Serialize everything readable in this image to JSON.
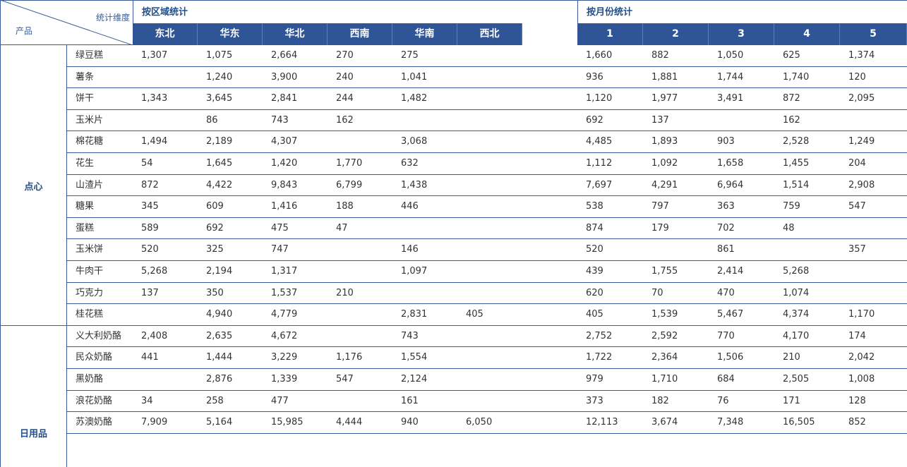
{
  "header": {
    "corner_stat": "统计维度",
    "corner_product": "产品",
    "region_group": "按区域统计",
    "month_group": "按月份统计",
    "regions": [
      "东北",
      "华东",
      "华北",
      "西南",
      "华南",
      "西北"
    ],
    "months": [
      "1",
      "2",
      "3",
      "4",
      "5"
    ]
  },
  "categories": [
    {
      "name": "点心"
    },
    {
      "name": "日用品"
    }
  ],
  "rows": [
    {
      "product": "绿豆糕",
      "regions": [
        "1,307",
        "1,075",
        "2,664",
        "270",
        "275",
        ""
      ],
      "months": [
        "1,660",
        "882",
        "1,050",
        "625",
        "1,374"
      ]
    },
    {
      "product": "薯条",
      "regions": [
        "",
        "1,240",
        "3,900",
        "240",
        "1,041",
        ""
      ],
      "months": [
        "936",
        "1,881",
        "1,744",
        "1,740",
        "120"
      ]
    },
    {
      "product": "饼干",
      "regions": [
        "1,343",
        "3,645",
        "2,841",
        "244",
        "1,482",
        ""
      ],
      "months": [
        "1,120",
        "1,977",
        "3,491",
        "872",
        "2,095"
      ]
    },
    {
      "product": "玉米片",
      "regions": [
        "",
        "86",
        "743",
        "162",
        "",
        ""
      ],
      "months": [
        "692",
        "137",
        "",
        "162",
        ""
      ]
    },
    {
      "product": "棉花糖",
      "regions": [
        "1,494",
        "2,189",
        "4,307",
        "",
        "3,068",
        ""
      ],
      "months": [
        "4,485",
        "1,893",
        "903",
        "2,528",
        "1,249"
      ]
    },
    {
      "product": "花生",
      "regions": [
        "54",
        "1,645",
        "1,420",
        "1,770",
        "632",
        ""
      ],
      "months": [
        "1,112",
        "1,092",
        "1,658",
        "1,455",
        "204"
      ]
    },
    {
      "product": "山渣片",
      "regions": [
        "872",
        "4,422",
        "9,843",
        "6,799",
        "1,438",
        ""
      ],
      "months": [
        "7,697",
        "4,291",
        "6,964",
        "1,514",
        "2,908"
      ]
    },
    {
      "product": "糖果",
      "regions": [
        "345",
        "609",
        "1,416",
        "188",
        "446",
        ""
      ],
      "months": [
        "538",
        "797",
        "363",
        "759",
        "547"
      ]
    },
    {
      "product": "蛋糕",
      "regions": [
        "589",
        "692",
        "475",
        "47",
        "",
        ""
      ],
      "months": [
        "874",
        "179",
        "702",
        "48",
        ""
      ]
    },
    {
      "product": "玉米饼",
      "regions": [
        "520",
        "325",
        "747",
        "",
        "146",
        ""
      ],
      "months": [
        "520",
        "",
        "861",
        "",
        "357"
      ]
    },
    {
      "product": "牛肉干",
      "regions": [
        "5,268",
        "2,194",
        "1,317",
        "",
        "1,097",
        ""
      ],
      "months": [
        "439",
        "1,755",
        "2,414",
        "5,268",
        ""
      ]
    },
    {
      "product": "巧克力",
      "regions": [
        "137",
        "350",
        "1,537",
        "210",
        "",
        ""
      ],
      "months": [
        "620",
        "70",
        "470",
        "1,074",
        ""
      ]
    },
    {
      "product": "桂花糕",
      "regions": [
        "",
        "4,940",
        "4,779",
        "",
        "2,831",
        "405"
      ],
      "months": [
        "405",
        "1,539",
        "5,467",
        "4,374",
        "1,170"
      ]
    },
    {
      "product": "义大利奶酪",
      "regions": [
        "2,408",
        "2,635",
        "4,672",
        "",
        "743",
        ""
      ],
      "months": [
        "2,752",
        "2,592",
        "770",
        "4,170",
        "174"
      ]
    },
    {
      "product": "民众奶酪",
      "regions": [
        "441",
        "1,444",
        "3,229",
        "1,176",
        "1,554",
        ""
      ],
      "months": [
        "1,722",
        "2,364",
        "1,506",
        "210",
        "2,042"
      ]
    },
    {
      "product": "黑奶酪",
      "regions": [
        "",
        "2,876",
        "1,339",
        "547",
        "2,124",
        ""
      ],
      "months": [
        "979",
        "1,710",
        "684",
        "2,505",
        "1,008"
      ]
    },
    {
      "product": "浪花奶酪",
      "regions": [
        "34",
        "258",
        "477",
        "",
        "161",
        ""
      ],
      "months": [
        "373",
        "182",
        "76",
        "171",
        "128"
      ]
    },
    {
      "product": "苏澳奶酪",
      "regions": [
        "7,909",
        "5,164",
        "15,985",
        "4,444",
        "940",
        "6,050"
      ],
      "months": [
        "12,113",
        "3,674",
        "7,348",
        "16,505",
        "852"
      ]
    }
  ]
}
